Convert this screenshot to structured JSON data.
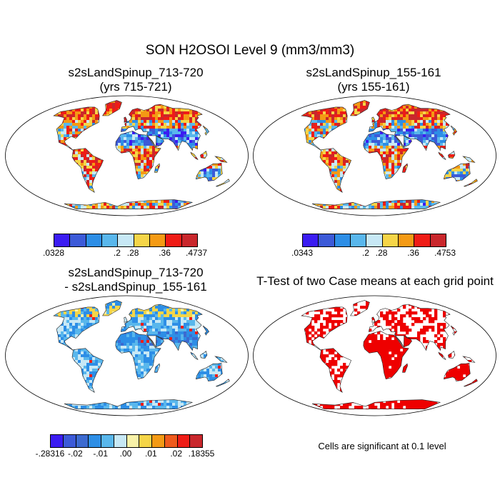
{
  "main_title": "SON H2OSOI Level 9 (mm3/mm3)",
  "panels": {
    "top_left": {
      "title_line1": "s2sLandSpinup_713-720",
      "title_line2": "(yrs 715-721)"
    },
    "top_right": {
      "title_line1": "s2sLandSpinup_155-161",
      "title_line2": "(yrs 155-161)"
    },
    "bottom_left": {
      "title_line1": "s2sLandSpinup_713-720",
      "title_line2": "- s2sLandSpinup_155-161"
    },
    "bottom_right": {
      "title_line1": "T-Test of two Case means at each grid point",
      "note": "Cells are significant at 0.1 level"
    }
  },
  "colorbars": {
    "top_left": {
      "colors": [
        "#3b1cf2",
        "#3c5ad8",
        "#2d8ee6",
        "#59b7ec",
        "#c7e8f5",
        "#f5d548",
        "#f49a14",
        "#ef1c16",
        "#c9272c"
      ],
      "labels": [
        ".0328",
        ".2",
        ".28",
        ".36",
        ".4737"
      ]
    },
    "top_right": {
      "colors": [
        "#3b1cf2",
        "#3c5ad8",
        "#2d8ee6",
        "#59b7ec",
        "#c7e8f5",
        "#f5d548",
        "#f49a14",
        "#ef1c16",
        "#c9272c"
      ],
      "labels": [
        ".0343",
        ".2",
        ".28",
        ".36",
        ".4753"
      ]
    },
    "bottom_left": {
      "colors": [
        "#3b1cf2",
        "#3c5ad8",
        "#3c6ad0",
        "#2d8ee6",
        "#59b7ec",
        "#c7e8f5",
        "#f8f2a8",
        "#f5d548",
        "#f49a14",
        "#ef5a1c",
        "#ef1c16",
        "#c9272c"
      ],
      "labels": [
        "-.28316",
        "-.02",
        "-.01",
        ".00",
        ".01",
        ".02",
        ".18355"
      ]
    }
  },
  "colors": {
    "land_wet": "#2d6fe0",
    "land_dry": "#f49a14",
    "diff_neutral": "#6fb4e6",
    "significant": "#ee0000"
  }
}
